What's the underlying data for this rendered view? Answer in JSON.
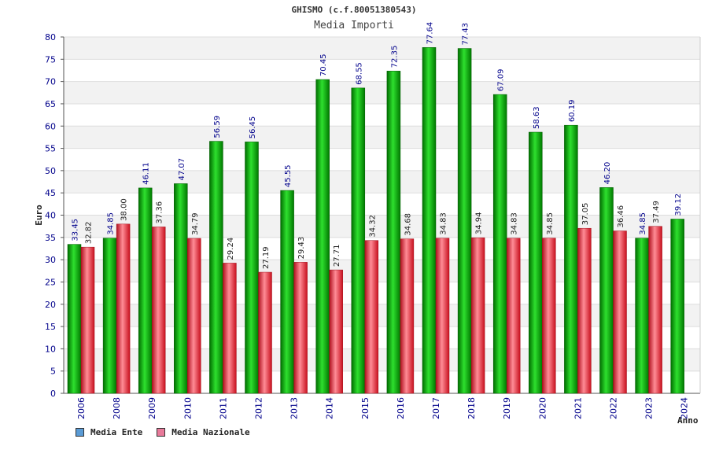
{
  "chart_data": {
    "type": "bar",
    "title": "GHISMO (c.f.80051380543)",
    "subtitle": "Media Importi",
    "ylabel": "Euro",
    "xlabel": "Anno",
    "ylim": [
      0,
      80
    ],
    "ytick_step": 5,
    "grid": true,
    "legend_position": "bottom-left",
    "categories": [
      "2006",
      "2008",
      "2009",
      "2010",
      "2011",
      "2012",
      "2013",
      "2014",
      "2015",
      "2016",
      "2017",
      "2018",
      "2019",
      "2020",
      "2021",
      "2022",
      "2023",
      "2024"
    ],
    "series": [
      {
        "name": "Media Ente",
        "legend_color": "#5a9bd5",
        "bar_color": "#00b400",
        "values": [
          33.45,
          34.85,
          46.11,
          47.07,
          56.59,
          56.45,
          45.55,
          70.45,
          68.55,
          72.35,
          77.64,
          77.43,
          67.09,
          58.63,
          60.19,
          46.2,
          34.85,
          39.12
        ],
        "labels": [
          "33.45",
          "34.85",
          "46.11",
          "47.07",
          "56.59",
          "56.45",
          "45.55",
          "70.45",
          "68.55",
          "72.35",
          "77.64",
          "77.43",
          "67.09",
          "58.63",
          "60.19",
          "46.20",
          "34.85",
          "39.12"
        ]
      },
      {
        "name": "Media Nazionale",
        "legend_color": "#e87a9a",
        "bar_color": "#e8283c",
        "values": [
          32.82,
          38.0,
          37.36,
          34.79,
          29.24,
          27.19,
          29.43,
          27.71,
          34.32,
          34.68,
          34.83,
          34.94,
          34.83,
          34.85,
          37.05,
          36.46,
          37.49,
          null
        ],
        "labels": [
          "32.82",
          "38.00",
          "37.36",
          "34.79",
          "29.24",
          "27.19",
          "29.43",
          "27.71",
          "34.32",
          "34.68",
          "34.83",
          "34.94",
          "34.83",
          "34.85",
          "37.05",
          "36.46",
          "37.49",
          null
        ]
      }
    ]
  }
}
